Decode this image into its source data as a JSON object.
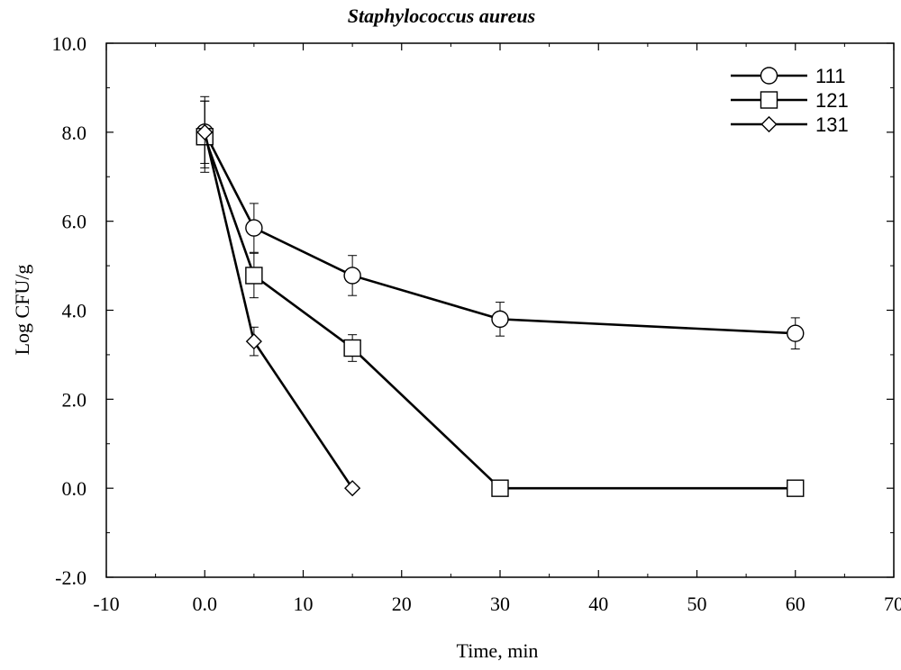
{
  "chart_data": {
    "type": "line",
    "title": "Staphylococcus aureus",
    "xlabel": "Time, min",
    "ylabel": "Log CFU/g",
    "xlim": [
      -10,
      70
    ],
    "ylim": [
      -2,
      10
    ],
    "x_ticks": [
      -10,
      0,
      10,
      20,
      30,
      40,
      50,
      60,
      70
    ],
    "x_tick_labels": [
      "-10",
      "0.0",
      "10",
      "20",
      "30",
      "40",
      "50",
      "60",
      "70"
    ],
    "y_ticks": [
      -2,
      0,
      2,
      4,
      6,
      8,
      10
    ],
    "y_tick_labels": [
      "-2.0",
      "0.0",
      "2.0",
      "4.0",
      "6.0",
      "8.0",
      "10.0"
    ],
    "grid": false,
    "legend_position": "top-right",
    "series": [
      {
        "name": "111",
        "marker": "circle",
        "x": [
          0,
          5,
          15,
          30,
          60
        ],
        "y": [
          8.0,
          5.85,
          4.78,
          3.8,
          3.48
        ],
        "err": [
          0.8,
          0.55,
          0.45,
          0.38,
          0.35
        ]
      },
      {
        "name": "121",
        "marker": "square",
        "x": [
          0,
          5,
          15,
          30,
          60
        ],
        "y": [
          7.9,
          4.78,
          3.15,
          0.0,
          0.0
        ],
        "err": [
          0.8,
          0.5,
          0.3,
          0.0,
          0.0
        ]
      },
      {
        "name": "131",
        "marker": "diamond",
        "x": [
          0,
          5,
          15
        ],
        "y": [
          8.0,
          3.3,
          0.0
        ],
        "err": [
          0.7,
          0.32,
          0.0
        ]
      }
    ]
  }
}
